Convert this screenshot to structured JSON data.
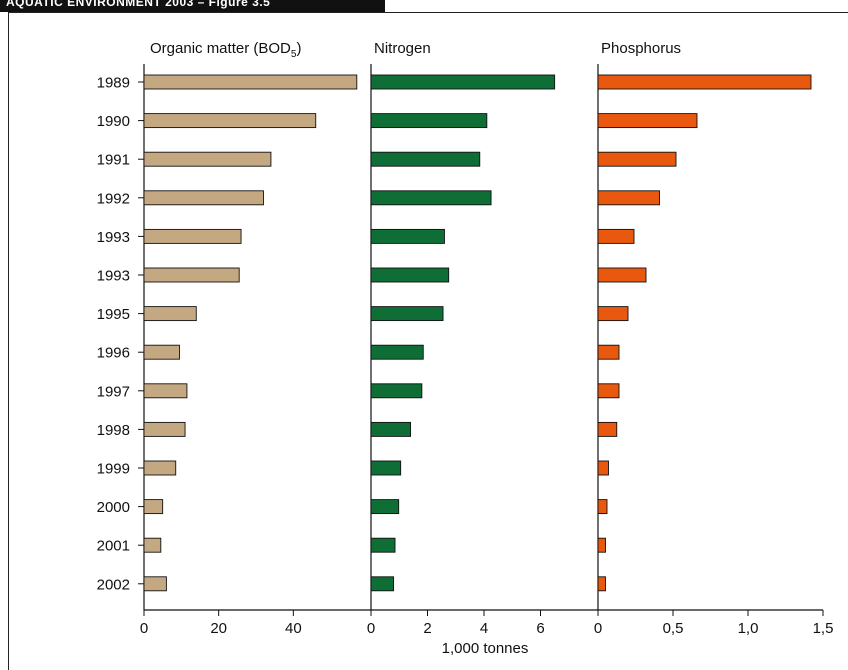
{
  "header": {
    "text": "AQUATIC ENVIRONMENT 2003 – Figure 3.5"
  },
  "chart_data": {
    "type": "bar",
    "orientation": "horizontal",
    "categories": [
      "1989",
      "1990",
      "1991",
      "1992",
      "1993",
      "1993",
      "1995",
      "1996",
      "1997",
      "1998",
      "1999",
      "2000",
      "2001",
      "2002"
    ],
    "xlabel": "1,000 tonnes",
    "panels": [
      {
        "name": "Organic matter (BOD",
        "name_subscript": "5",
        "name_suffix": ")",
        "color": "#c4a882",
        "xlim": [
          0,
          60
        ],
        "ticks": [
          0,
          20,
          40
        ],
        "tick_labels": [
          "0",
          "20",
          "40"
        ],
        "values": [
          57,
          46,
          34,
          32,
          26,
          25.5,
          14,
          9.5,
          11.5,
          11,
          8.5,
          5,
          4.5,
          6
        ]
      },
      {
        "name": "Nitrogen",
        "color": "#0e6e35",
        "xlim": [
          0,
          8
        ],
        "ticks": [
          0,
          2,
          4,
          6
        ],
        "tick_labels": [
          "0",
          "2",
          "4",
          "6"
        ],
        "values": [
          6.5,
          4.1,
          3.85,
          4.25,
          2.6,
          2.75,
          2.55,
          1.85,
          1.8,
          1.4,
          1.05,
          0.98,
          0.85,
          0.8
        ]
      },
      {
        "name": "Phosphorus",
        "color": "#e8580e",
        "xlim": [
          0,
          1.5
        ],
        "ticks": [
          0,
          0.5,
          1.0,
          1.5
        ],
        "tick_labels": [
          "0",
          "0,5",
          "1,0",
          "1,5"
        ],
        "values": [
          1.42,
          0.66,
          0.52,
          0.41,
          0.24,
          0.32,
          0.2,
          0.14,
          0.14,
          0.125,
          0.07,
          0.06,
          0.05,
          0.05
        ]
      }
    ]
  }
}
